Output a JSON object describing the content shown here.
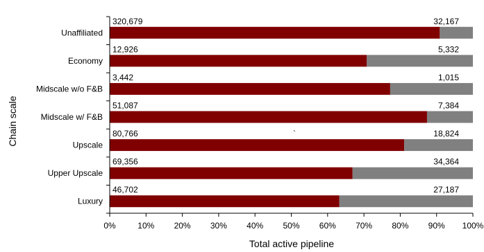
{
  "chart_data": {
    "type": "bar",
    "orientation": "horizontal",
    "stacked": "percent",
    "categories": [
      "Unaffiliated",
      "Economy",
      "Midscale w/o F&B",
      "Midscale w/ F&B",
      "Upscale",
      "Upper Upscale",
      "Luxury"
    ],
    "series": [
      {
        "values": [
          320679,
          12926,
          3442,
          51087,
          80766,
          69356,
          46702
        ],
        "color": "#800000"
      },
      {
        "values": [
          32167,
          5332,
          1015,
          7384,
          18824,
          34364,
          27187
        ],
        "color": "#808080"
      }
    ],
    "data_labels": {
      "series0": [
        "320,679",
        "12,926",
        "3,442",
        "51,087",
        "80,766",
        "69,356",
        "46,702"
      ],
      "series1": [
        "32,167",
        "5,332",
        "1,015",
        "7,384",
        "18,824",
        "34,364",
        "27,187"
      ]
    },
    "xlabel": "Total active pipeline",
    "ylabel": "Chain scale",
    "xlim": [
      0,
      100
    ],
    "x_ticks": [
      "0%",
      "10%",
      "20%",
      "30%",
      "40%",
      "50%",
      "60%",
      "70%",
      "80%",
      "90%",
      "100%"
    ],
    "stray_mark": "`",
    "grid": false,
    "legend": "none"
  }
}
